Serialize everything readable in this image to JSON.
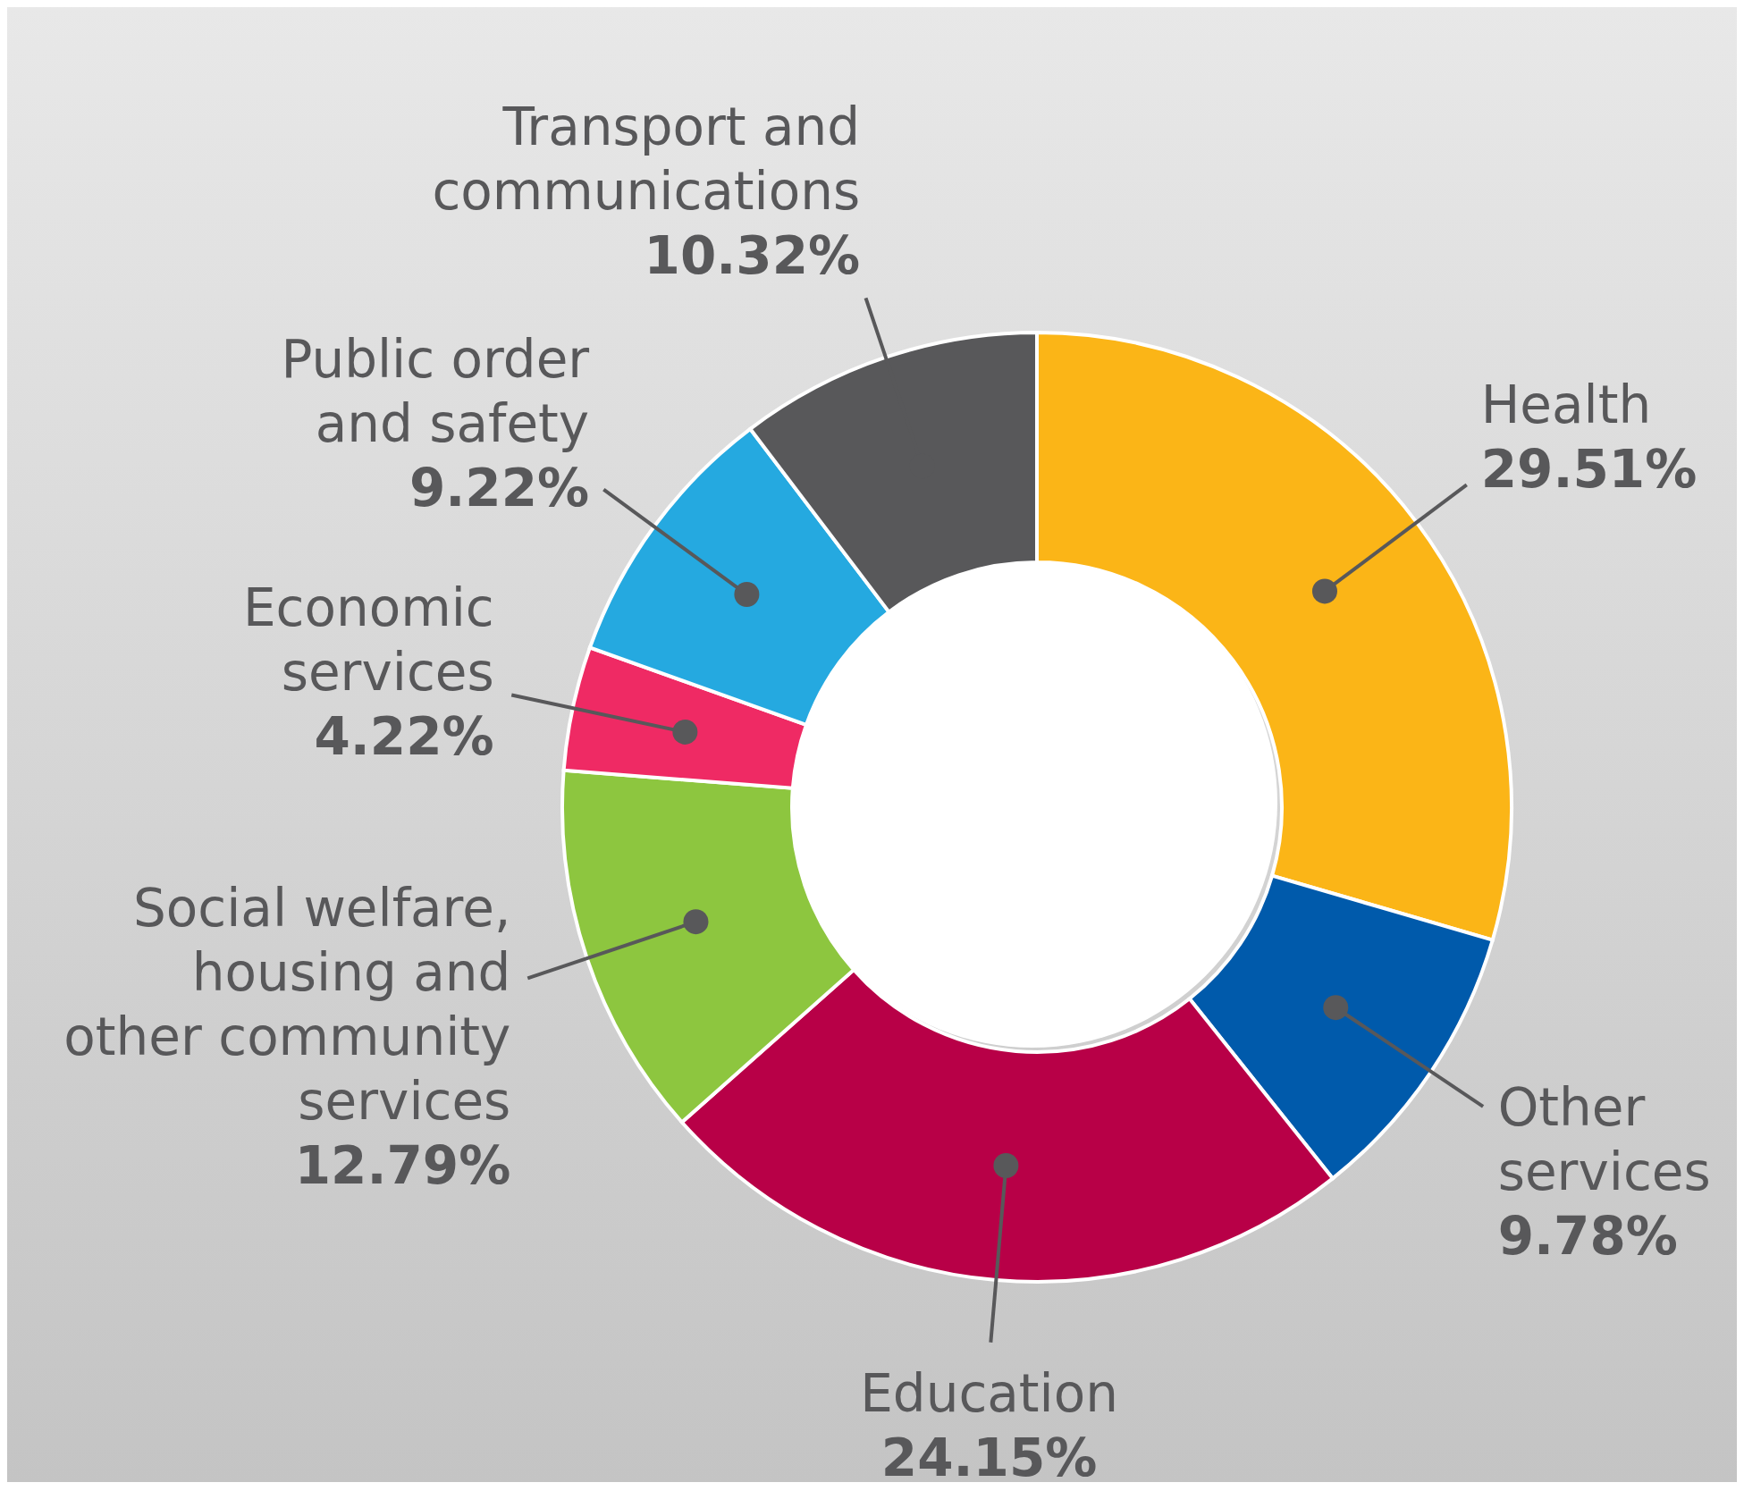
{
  "chart_data": {
    "type": "donut",
    "categories": [
      "Health",
      "Other services",
      "Education",
      "Social welfare, housing and other community services",
      "Economic services",
      "Public order and safety",
      "Transport and communications"
    ],
    "values": [
      29.51,
      9.78,
      24.15,
      12.79,
      4.22,
      9.22,
      10.32
    ],
    "colors": [
      "#fbb517",
      "#005aab",
      "#b80047",
      "#8dc63f",
      "#ef2a64",
      "#25a9e0",
      "#58585a"
    ],
    "value_labels": [
      "29.51%",
      "9.78%",
      "24.15%",
      "12.79%",
      "4.22%",
      "9.22%",
      "10.32%"
    ]
  }
}
